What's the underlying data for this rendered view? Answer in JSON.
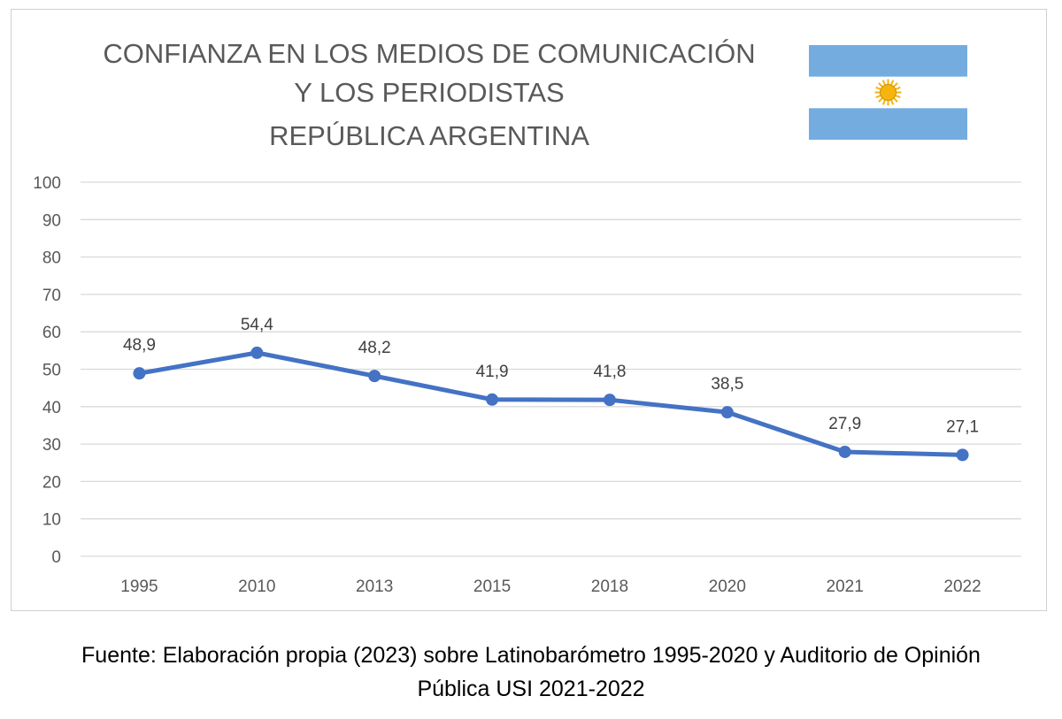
{
  "chart_data": {
    "type": "line",
    "title": [
      "CONFIANZA EN LOS MEDIOS DE COMUNICACIÓN",
      "Y LOS PERIODISTAS",
      "REPÚBLICA ARGENTINA"
    ],
    "categories": [
      "1995",
      "2010",
      "2013",
      "2015",
      "2018",
      "2020",
      "2021",
      "2022"
    ],
    "series": [
      {
        "values": [
          48.9,
          54.4,
          48.2,
          41.9,
          41.8,
          38.5,
          27.9,
          27.1
        ],
        "data_labels": [
          "48,9",
          "54,4",
          "48,2",
          "41,9",
          "41,8",
          "38,5",
          "27,9",
          "27,1"
        ]
      }
    ],
    "ylim": [
      0,
      100
    ],
    "yticks": [
      0,
      10,
      20,
      30,
      40,
      50,
      60,
      70,
      80,
      90,
      100
    ],
    "grid": "horizontal",
    "legend": "none"
  },
  "flag_icon": "argentina-flag-icon",
  "colors": {
    "series": "#4472c4",
    "gridline": "#d9d9d9",
    "text": "#595959",
    "flag_blue": "#74acdf",
    "flag_sun": "#f6b40e"
  },
  "source_note": {
    "line1": "Fuente: Elaboración propia (2023) sobre Latinobarómetro 1995-2020 y Auditorio de Opinión",
    "line2": "Pública USI 2021-2022"
  }
}
